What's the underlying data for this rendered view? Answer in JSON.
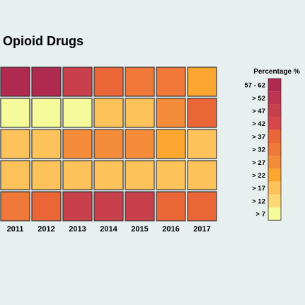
{
  "chart_data": {
    "type": "heatmap",
    "title": "Opioid Drugs",
    "x": [
      "2011",
      "2012",
      "2013",
      "2014",
      "2015",
      "2016",
      "2017"
    ],
    "rows": [
      [
        57,
        57,
        47,
        37,
        32,
        32,
        22
      ],
      [
        7,
        7,
        7,
        17,
        17,
        27,
        37
      ],
      [
        17,
        17,
        27,
        27,
        27,
        22,
        17
      ],
      [
        17,
        17,
        17,
        17,
        17,
        17,
        17
      ],
      [
        32,
        37,
        47,
        47,
        47,
        37,
        37
      ]
    ],
    "legend": {
      "title": "Percentage %",
      "position": "right",
      "labels": [
        "57 - 62",
        "> 52",
        "> 47",
        "> 42",
        "> 37",
        "> 32",
        "> 27",
        "> 22",
        "> 17",
        "> 12",
        "> 7"
      ],
      "thresholds": [
        57,
        52,
        47,
        42,
        37,
        32,
        27,
        22,
        17,
        12,
        7
      ],
      "colors": [
        "#b0294f",
        "#bd3350",
        "#c8404c",
        "#d5474a",
        "#ea6637",
        "#f0793a",
        "#f48c39",
        "#fba62f",
        "#fdc25a",
        "#fdd874",
        "#f5fa9b"
      ]
    }
  }
}
